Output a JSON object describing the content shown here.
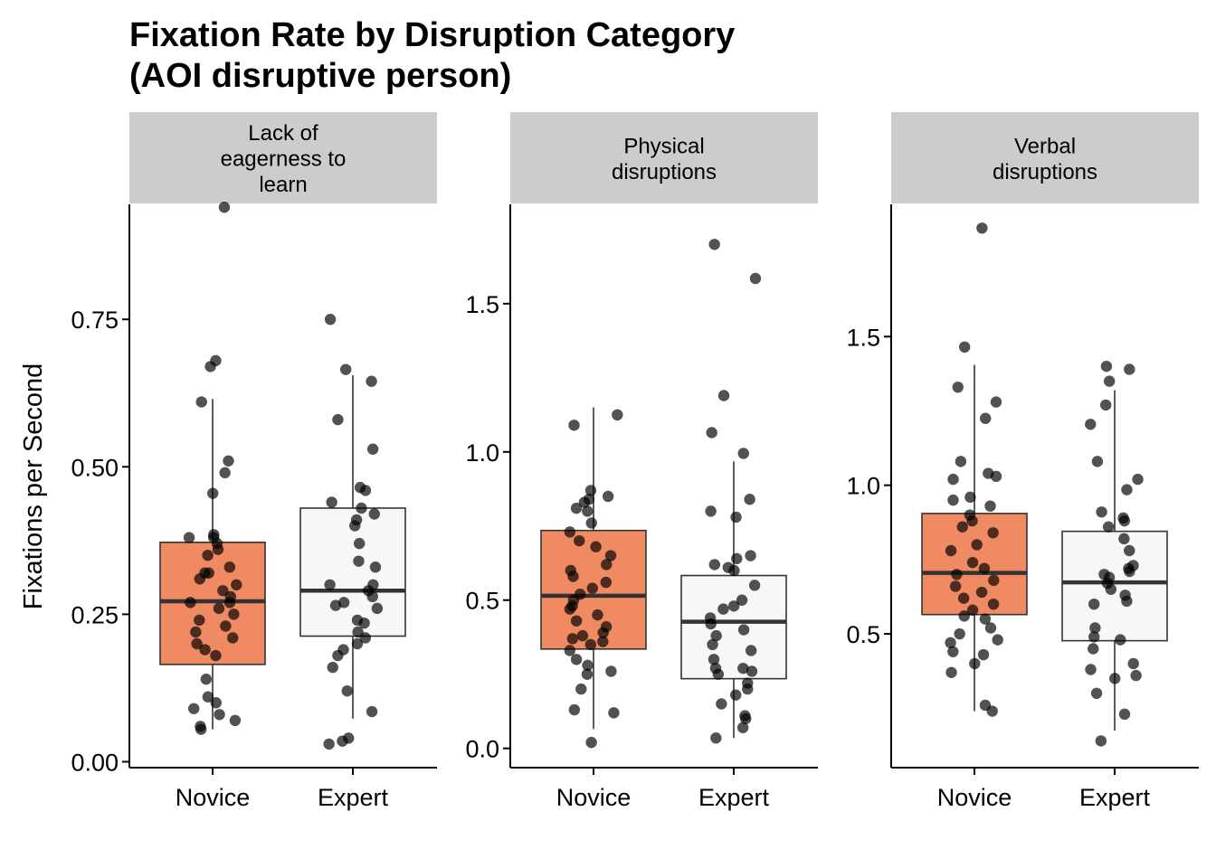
{
  "title_line1": "Fixation Rate by Disruption Category",
  "title_line2": "(AOI disruptive person)",
  "ylabel": "Fixations per Second",
  "colors": {
    "novice_fill": "#ef8a62",
    "expert_fill": "#f7f7f7",
    "strip_fill": "#cccccc",
    "point": "#000000",
    "box_stroke": "#333333"
  },
  "chart_data": [
    {
      "type": "boxplot",
      "panel_label": [
        "Lack of",
        "eagerness to",
        "learn"
      ],
      "categories": [
        "Novice",
        "Expert"
      ],
      "ylim": [
        -0.01,
        0.945
      ],
      "yticks": [
        "0.00",
        "0.25",
        "0.50",
        "0.75"
      ],
      "series": [
        {
          "name": "Novice",
          "whisker_low": 0.055,
          "q1": 0.165,
          "median": 0.272,
          "q3": 0.372,
          "whisker_high": 0.615,
          "points": [
            0.94,
            0.68,
            0.67,
            0.61,
            0.51,
            0.49,
            0.455,
            0.385,
            0.38,
            0.38,
            0.37,
            0.36,
            0.35,
            0.33,
            0.32,
            0.32,
            0.31,
            0.3,
            0.29,
            0.28,
            0.27,
            0.27,
            0.26,
            0.25,
            0.24,
            0.23,
            0.22,
            0.21,
            0.2,
            0.19,
            0.18,
            0.14,
            0.11,
            0.1,
            0.09,
            0.08,
            0.07,
            0.06,
            0.055
          ]
        },
        {
          "name": "Expert",
          "whisker_low": 0.073,
          "q1": 0.213,
          "median": 0.29,
          "q3": 0.43,
          "whisker_high": 0.655,
          "points": [
            0.75,
            0.665,
            0.645,
            0.58,
            0.53,
            0.465,
            0.46,
            0.44,
            0.43,
            0.42,
            0.41,
            0.4,
            0.37,
            0.34,
            0.33,
            0.3,
            0.3,
            0.29,
            0.28,
            0.27,
            0.265,
            0.26,
            0.24,
            0.235,
            0.22,
            0.21,
            0.2,
            0.19,
            0.18,
            0.16,
            0.12,
            0.085,
            0.04,
            0.035,
            0.03
          ]
        }
      ]
    },
    {
      "type": "boxplot",
      "panel_label": [
        "Physical",
        "disruptions"
      ],
      "categories": [
        "Novice",
        "Expert"
      ],
      "ylim": [
        -0.065,
        1.835
      ],
      "yticks": [
        "0.0",
        "0.5",
        "1.0",
        "1.5"
      ],
      "series": [
        {
          "name": "Novice",
          "whisker_low": 0.065,
          "q1": 0.335,
          "median": 0.515,
          "q3": 0.735,
          "whisker_high": 1.15,
          "points": [
            1.125,
            1.09,
            0.87,
            0.85,
            0.84,
            0.83,
            0.81,
            0.8,
            0.76,
            0.73,
            0.7,
            0.68,
            0.65,
            0.62,
            0.6,
            0.58,
            0.56,
            0.54,
            0.52,
            0.5,
            0.48,
            0.47,
            0.45,
            0.43,
            0.41,
            0.39,
            0.38,
            0.37,
            0.36,
            0.35,
            0.33,
            0.3,
            0.28,
            0.26,
            0.25,
            0.2,
            0.13,
            0.12,
            0.02
          ]
        },
        {
          "name": "Expert",
          "whisker_low": 0.035,
          "q1": 0.235,
          "median": 0.427,
          "q3": 0.583,
          "whisker_high": 0.968,
          "points": [
            1.7,
            1.585,
            1.19,
            1.065,
            0.995,
            0.84,
            0.8,
            0.78,
            0.65,
            0.64,
            0.62,
            0.61,
            0.6,
            0.55,
            0.5,
            0.48,
            0.47,
            0.44,
            0.42,
            0.4,
            0.38,
            0.35,
            0.33,
            0.3,
            0.27,
            0.27,
            0.26,
            0.25,
            0.22,
            0.2,
            0.18,
            0.15,
            0.11,
            0.1,
            0.07,
            0.035
          ]
        }
      ]
    },
    {
      "type": "boxplot",
      "panel_label": [
        "Verbal",
        "disruptions"
      ],
      "categories": [
        "Novice",
        "Expert"
      ],
      "ylim": [
        0.05,
        1.945
      ],
      "yticks": [
        "0.5",
        "1.0",
        "1.5"
      ],
      "series": [
        {
          "name": "Novice",
          "whisker_low": 0.24,
          "q1": 0.565,
          "median": 0.705,
          "q3": 0.905,
          "whisker_high": 1.405,
          "points": [
            1.865,
            1.465,
            1.33,
            1.28,
            1.225,
            1.08,
            1.04,
            1.03,
            1.02,
            0.96,
            0.95,
            0.93,
            0.9,
            0.88,
            0.86,
            0.84,
            0.8,
            0.78,
            0.74,
            0.72,
            0.7,
            0.68,
            0.66,
            0.64,
            0.62,
            0.6,
            0.58,
            0.56,
            0.55,
            0.52,
            0.5,
            0.48,
            0.47,
            0.44,
            0.43,
            0.4,
            0.37,
            0.26,
            0.24
          ]
        },
        {
          "name": "Expert",
          "whisker_low": 0.175,
          "q1": 0.477,
          "median": 0.673,
          "q3": 0.845,
          "whisker_high": 1.32,
          "points": [
            1.4,
            1.39,
            1.35,
            1.27,
            1.205,
            1.08,
            1.02,
            0.985,
            0.91,
            0.89,
            0.88,
            0.86,
            0.82,
            0.78,
            0.73,
            0.72,
            0.71,
            0.7,
            0.69,
            0.67,
            0.65,
            0.63,
            0.61,
            0.6,
            0.52,
            0.49,
            0.48,
            0.45,
            0.4,
            0.38,
            0.36,
            0.35,
            0.3,
            0.23,
            0.14
          ]
        }
      ]
    }
  ]
}
